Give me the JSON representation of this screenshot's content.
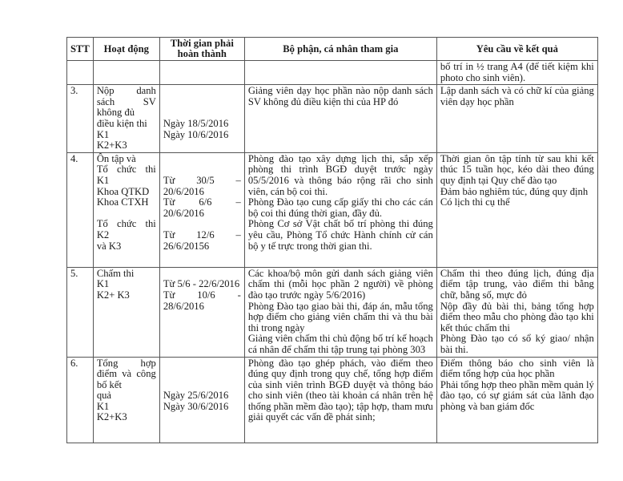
{
  "headers": [
    "STT",
    "Hoạt động",
    "Thời gian phải hoàn thành",
    "Bộ phận, cá nhân tham gia",
    "Yêu cầu về kết quả"
  ],
  "rows": [
    {
      "stt": "",
      "activity": [],
      "time": [],
      "participants": [],
      "results": [
        "bố trí in ½ trang A4 (để tiết kiệm khi photo cho sinh viên)."
      ]
    },
    {
      "stt": "3.",
      "activity": [
        "Nộp danh sách SV không đủ",
        "điều kiện thi",
        "K1",
        "K2+K3"
      ],
      "time": [
        "",
        "",
        "",
        "Ngày 18/5/2016",
        "Ngày 10/6/2016"
      ],
      "participants": [
        "Giảng viên dạy học phần nào nộp danh sách SV không đủ điều kiện thi của HP đó"
      ],
      "results": [
        "Lập danh sách và có chữ kí của giảng viên dạy học phần"
      ]
    },
    {
      "stt": "4.",
      "activity": [
        "Ôn tập và",
        "Tổ chức thi K1",
        "Khoa QTKD",
        "Khoa CTXH",
        "",
        "Tổ chức thi K2",
        "và K3"
      ],
      "time": [
        "",
        "",
        "Từ 30/5 – 20/6/2016",
        "Từ 6/6 – 20/6/2016",
        "",
        "Từ 12/6 –",
        "26/6/20156"
      ],
      "participants": [
        "Phòng đào tạo xây dựng lịch thi, sắp xếp phòng thi trình BGĐ duyệt trước ngày 05/5/2016 và thông báo rộng rãi cho sinh viên, cán bộ coi thi.",
        "Phòng Đào tạo cung cấp giấy thi cho các cán bộ coi thi đúng thời gian, đầy đủ.",
        "Phòng Cơ sở Vật chất bố trí phòng thi đúng yêu cầu, Phòng Tổ chức Hành chính cử cán bộ y tế trực trong thời gian thi."
      ],
      "results": [
        "Thời gian ôn tập tính từ sau khi kết thúc 15 tuần học, kéo dài theo đúng quy định tại Quy chế đào tạo",
        "Đảm bảo nghiêm túc, đúng quy định",
        "Có lịch thi cụ thể"
      ]
    },
    {
      "stt": "5.",
      "activity": [
        "Chấm thi",
        "K1",
        "K2+ K3"
      ],
      "time": [
        "",
        "Từ 5/6 -  22/6/2016",
        "Từ 10/6 - 28/6/2016"
      ],
      "participants": [
        "Các khoa/bộ môn gửi danh sách giảng viên chấm thi (mỗi học phần 2 người) về phòng đào tạo trước ngày 5/6/2016)",
        "Phòng Đào tạo giao bài thi, đáp án, mẫu tổng hợp điểm cho giảng viên chấm thi và thu bài thi trong ngày",
        "Giảng viên chấm thi chủ động bố trí kế hoạch cá nhân để chấm thi tập trung tại phòng 303"
      ],
      "results": [
        "Chấm thi theo đúng lịch, đúng địa điểm tập trung, vào điểm thi bằng chữ, bằng số, mực đỏ",
        "Nộp đầy đủ bài thi, bảng tổng hợp điểm theo mẫu cho phòng đào tạo khi kết thúc chấm thi",
        "Phòng Đào tạo có sổ ký giao/ nhận bài thi."
      ]
    },
    {
      "stt": "6.",
      "activity": [
        "Tổng hợp điểm và công bố kết",
        "quả",
        "K1",
        "K2+K3"
      ],
      "time": [
        "",
        "",
        "",
        "Ngày 25/6/2016",
        "Ngày 30/6/2016"
      ],
      "participants": [
        "Phòng đào tạo ghép phách, vào điểm theo đúng quy định trong quy chế, tổng hợp điểm của sinh viên trình BGĐ duyệt và thông báo cho sinh viên (theo tài khoản cá nhân trên hệ thống phần mềm đào tạo); tập hợp, tham mưu giải quyết các vấn đề phát sinh;"
      ],
      "results": [
        "Điểm thông báo cho sinh viên là điểm tổng hợp của học phần",
        "Phải tổng hợp theo phần mềm quản lý đào tạo, có sự giám sát của lãnh đạo phòng và ban giám đốc"
      ]
    }
  ]
}
